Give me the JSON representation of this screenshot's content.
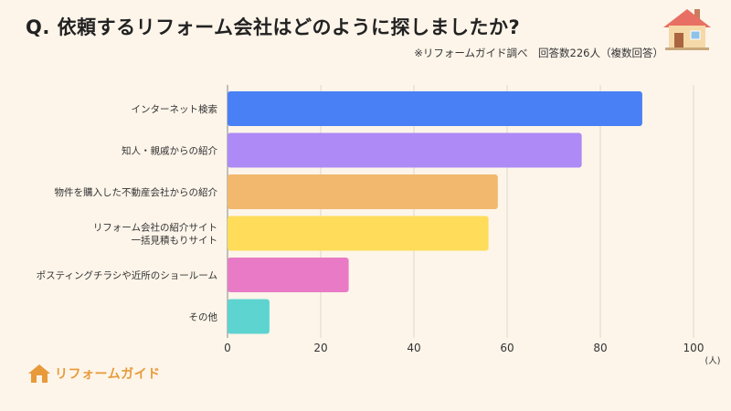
{
  "header": {
    "title": "Q. 依頼するリフォーム会社はどのように探しましたか?",
    "note": "※リフォームガイド調べ　回答数226人（複数回答）"
  },
  "brand": {
    "name": "リフォームガイド",
    "color": "#e89a3b"
  },
  "icons": {
    "house": "house-icon",
    "brand_logo": "house-logo-icon"
  },
  "chart_data": {
    "type": "bar",
    "orientation": "horizontal",
    "title": "Q. 依頼するリフォーム会社はどのように探しましたか?",
    "xlabel": "",
    "ylabel": "",
    "unit": "(人)",
    "xlim": [
      0,
      100
    ],
    "ticks": [
      0,
      20,
      40,
      60,
      80,
      100
    ],
    "grid": true,
    "categories": [
      [
        "インターネット検索"
      ],
      [
        "知人・親戚からの紹介"
      ],
      [
        "物件を購入した不動産会社からの紹介"
      ],
      [
        "リフォーム会社の紹介サイト",
        "一括見積もりサイト"
      ],
      [
        "ポスティングチラシや近所のショールーム"
      ],
      [
        "その他"
      ]
    ],
    "values": [
      89,
      76,
      58,
      56,
      26,
      9
    ],
    "colors": [
      "#4a80f5",
      "#ad8af5",
      "#f2b86e",
      "#ffdd5a",
      "#e97bc6",
      "#5ed4d1"
    ]
  }
}
